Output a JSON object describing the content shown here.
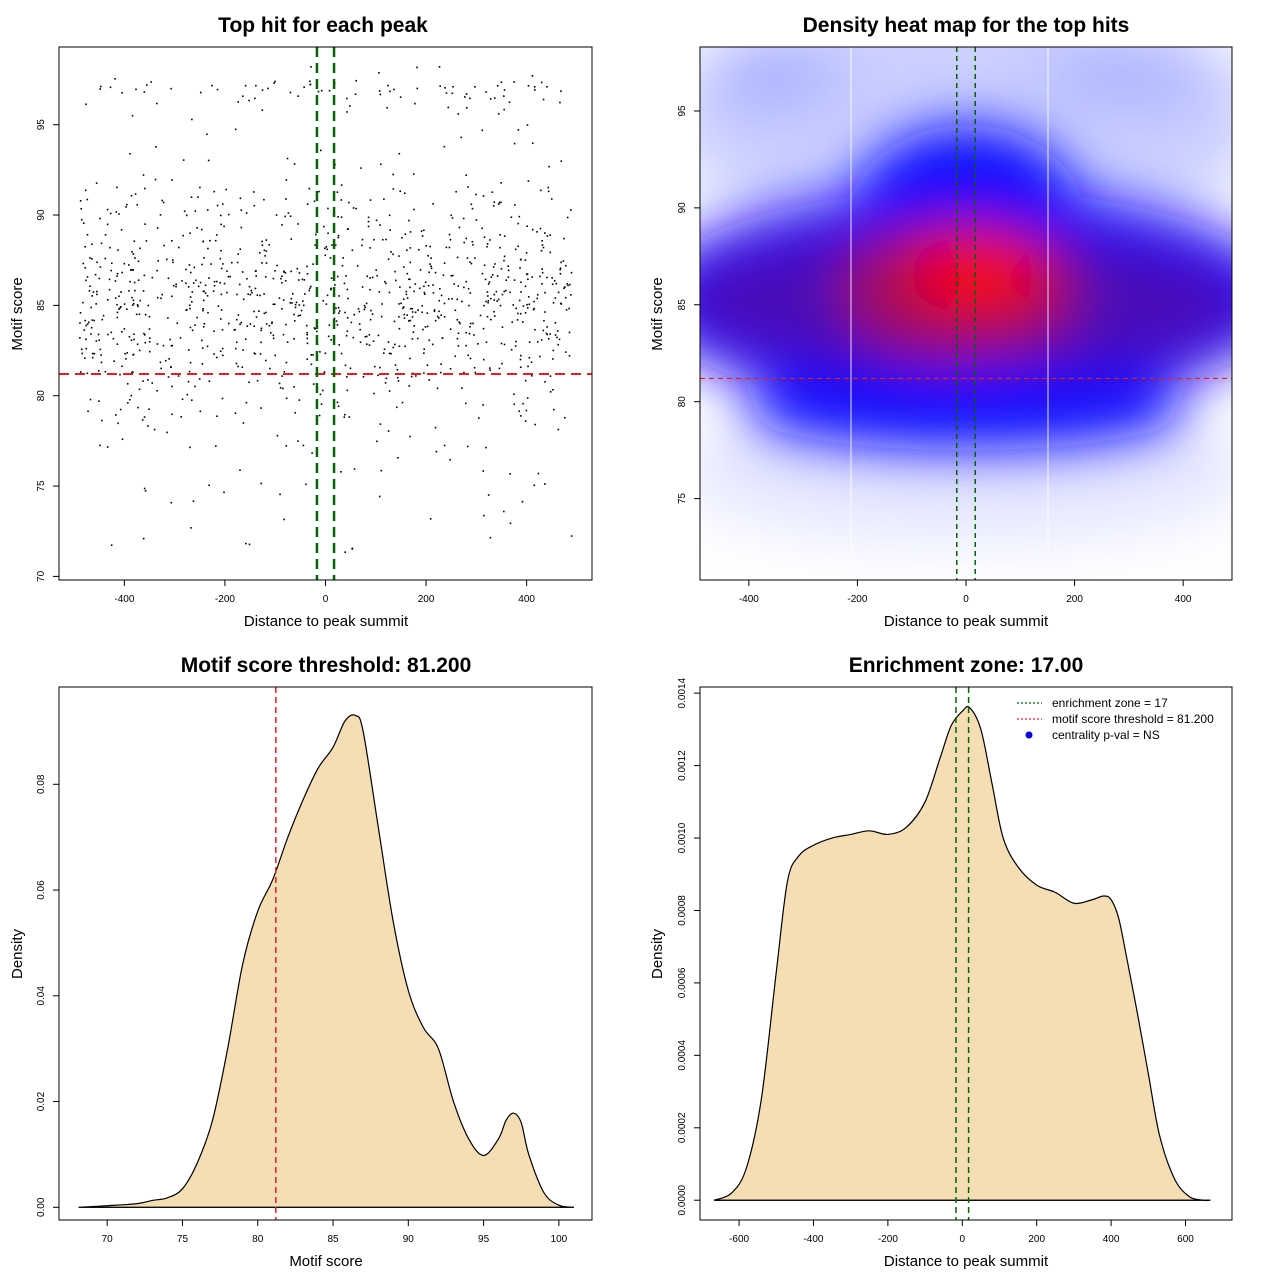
{
  "colors": {
    "fill": "#f5deb3",
    "threshold": "#e02020",
    "zone": "#006400",
    "point": "#000000"
  },
  "panels": {
    "scatter": {
      "title": "Top hit for each peak",
      "xlabel": "Distance to peak summit",
      "ylabel": "Motif score"
    },
    "heatmap": {
      "title": "Density heat map for the top hits",
      "xlabel": "Distance to peak summit",
      "ylabel": "Motif score"
    },
    "score_density": {
      "title": "Motif score threshold: 81.200",
      "xlabel": "Motif score",
      "ylabel": "Density"
    },
    "dist_density": {
      "title": "Enrichment zone: 17.00",
      "xlabel": "Distance to peak summit",
      "ylabel": "Density"
    }
  },
  "legend": {
    "zone": "enrichment zone = 17",
    "threshold": "motif score threshold = 81.200",
    "centrality": "centrality p-val = NS"
  },
  "chart_data": [
    {
      "type": "scatter",
      "title": "Top hit for each peak",
      "xlabel": "Distance to peak summit",
      "ylabel": "Motif score",
      "xlim": [
        -530,
        530
      ],
      "ylim": [
        69.8,
        99.3
      ],
      "xticks": [
        -400,
        -200,
        0,
        200,
        400
      ],
      "yticks": [
        70,
        75,
        80,
        85,
        90,
        95
      ],
      "n_points_approx": 1200,
      "threshold_y": 81.2,
      "zone_x": [
        -17,
        17
      ]
    },
    {
      "type": "heatmap",
      "title": "Density heat map for the top hits",
      "xlabel": "Distance to peak summit",
      "ylabel": "Motif score",
      "xlim": [
        -490,
        490
      ],
      "ylim": [
        70.8,
        98.3
      ],
      "xticks": [
        -400,
        -200,
        0,
        200,
        400
      ],
      "yticks": [
        75,
        80,
        85,
        90,
        95
      ],
      "peak": {
        "x": 20,
        "y": 86.7
      },
      "threshold_y": 81.2,
      "zone_x": [
        -17,
        17
      ]
    },
    {
      "type": "area",
      "title": "Motif score threshold: 81.200",
      "xlabel": "Motif score",
      "ylabel": "Density",
      "xlim": [
        66.8,
        102.2
      ],
      "ylim": [
        -0.0024,
        0.0984
      ],
      "xticks": [
        70,
        75,
        80,
        85,
        90,
        95,
        100
      ],
      "yticks": [
        0.0,
        0.02,
        0.04,
        0.06,
        0.08
      ],
      "ytick_labels": [
        "0.00",
        "0.02",
        "0.04",
        "0.06",
        "0.08"
      ],
      "x": [
        68.1,
        70,
        72,
        73,
        74,
        75,
        76,
        77,
        78,
        79,
        80,
        81,
        82,
        83,
        84,
        85,
        85.8,
        86.5,
        87,
        88,
        89,
        90,
        91,
        92,
        93,
        94,
        95,
        96,
        96.5,
        97,
        97.5,
        98,
        99,
        100,
        101
      ],
      "y": [
        0.0,
        0.0003,
        0.0007,
        0.0013,
        0.0018,
        0.0035,
        0.0085,
        0.0165,
        0.03,
        0.046,
        0.056,
        0.062,
        0.07,
        0.077,
        0.083,
        0.087,
        0.092,
        0.093,
        0.09,
        0.072,
        0.054,
        0.041,
        0.034,
        0.03,
        0.02,
        0.013,
        0.0098,
        0.013,
        0.0165,
        0.0178,
        0.016,
        0.01,
        0.0028,
        0.0004,
        0.0
      ],
      "threshold_x": 81.2
    },
    {
      "type": "area",
      "title": "Enrichment zone: 17.00",
      "xlabel": "Distance to peak summit",
      "ylabel": "Density",
      "xlim": [
        -705,
        725
      ],
      "ylim": [
        -5.46e-05,
        0.001417
      ],
      "xticks": [
        -600,
        -400,
        -200,
        0,
        200,
        400,
        600
      ],
      "yticks": [
        0.0,
        0.0002,
        0.0004,
        0.0006,
        0.0008,
        0.001,
        0.0012,
        0.0014
      ],
      "ytick_labels": [
        "0.0000",
        "0.0002",
        "0.0004",
        "0.0006",
        "0.0008",
        "0.0010",
        "0.0012",
        "0.0014"
      ],
      "x": [
        -667,
        -620,
        -580,
        -540,
        -500,
        -470,
        -440,
        -400,
        -350,
        -300,
        -250,
        -200,
        -150,
        -100,
        -60,
        -30,
        0,
        20,
        50,
        80,
        110,
        150,
        200,
        250,
        300,
        350,
        380,
        400,
        420,
        440,
        470,
        500,
        530,
        570,
        610,
        650,
        667
      ],
      "y": [
        0.0,
        2e-05,
        9e-05,
        0.00028,
        0.00063,
        0.00088,
        0.00095,
        0.00098,
        0.001,
        0.00101,
        0.00102,
        0.00101,
        0.00103,
        0.0011,
        0.00122,
        0.00131,
        0.00135,
        0.00136,
        0.0013,
        0.00115,
        0.001,
        0.00092,
        0.00087,
        0.00085,
        0.00082,
        0.00083,
        0.00084,
        0.00083,
        0.00078,
        0.00068,
        0.00052,
        0.00035,
        0.00018,
        6e-05,
        1e-05,
        0.0,
        0.0
      ],
      "zone_x": [
        -17,
        17
      ]
    }
  ]
}
